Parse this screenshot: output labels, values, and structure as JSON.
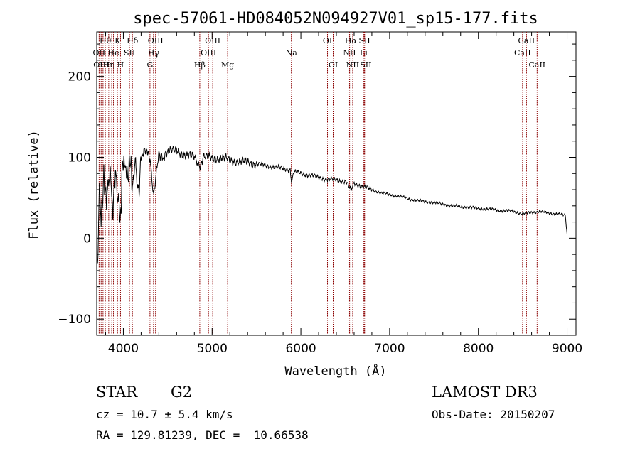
{
  "chart_data": {
    "type": "line",
    "title": "spec-57061-HD084052N094927V01_sp15-177.fits",
    "xlabel": "Wavelength (Å)",
    "ylabel": "Flux (relative)",
    "xlim": [
      3700,
      9100
    ],
    "ylim": [
      -120,
      255
    ],
    "xticks": [
      4000,
      5000,
      6000,
      7000,
      8000,
      9000
    ],
    "xtick_labels": [
      "4000",
      "5000",
      "6000",
      "7000",
      "8000",
      "9000"
    ],
    "yticks": [
      -100,
      0,
      100,
      200
    ],
    "ytick_labels": [
      "−100",
      "0",
      "100",
      "200"
    ],
    "series": [
      {
        "name": "spectrum",
        "color": "#000000",
        "x": [
          3710,
          3730,
          3750,
          3780,
          3810,
          3850,
          3880,
          3910,
          3930,
          3950,
          3968,
          3990,
          4020,
          4050,
          4080,
          4102,
          4130,
          4170,
          4200,
          4250,
          4300,
          4340,
          4400,
          4450,
          4500,
          4600,
          4700,
          4800,
          4861,
          4900,
          5000,
          5100,
          5200,
          5300,
          5400,
          5500,
          5600,
          5700,
          5800,
          5880,
          5893,
          5920,
          6000,
          6100,
          6200,
          6300,
          6400,
          6500,
          6563,
          6600,
          6700,
          6800,
          6900,
          7000,
          7100,
          7200,
          7300,
          7400,
          7500,
          7600,
          7700,
          7800,
          7900,
          8000,
          8100,
          8200,
          8300,
          8400,
          8500,
          8600,
          8700,
          8800,
          8900,
          8980,
          9000
        ],
        "y": [
          -30,
          60,
          20,
          75,
          45,
          90,
          30,
          85,
          55,
          40,
          20,
          95,
          90,
          75,
          100,
          60,
          95,
          50,
          100,
          110,
          100,
          50,
          105,
          98,
          108,
          108,
          103,
          100,
          85,
          102,
          98,
          100,
          96,
          95,
          94,
          92,
          90,
          88,
          86,
          85,
          70,
          82,
          80,
          78,
          75,
          73,
          72,
          70,
          62,
          68,
          64,
          60,
          56,
          54,
          52,
          49,
          47,
          45,
          44,
          42,
          40,
          39,
          38,
          37,
          36,
          35,
          34,
          33,
          30,
          32,
          33,
          31,
          30,
          28,
          5
        ]
      }
    ],
    "line_color": "#8B0000",
    "lines": [
      {
        "x": 3727,
        "label": "OII",
        "row": 1
      },
      {
        "x": 3750,
        "label": "OIII",
        "row": 2
      },
      {
        "x": 3771,
        "label": "",
        "row": 0
      },
      {
        "x": 3797,
        "label": "Hθ",
        "row": 0
      },
      {
        "x": 3835,
        "label": "Hη",
        "row": 2
      },
      {
        "x": 3869,
        "label": "",
        "row": 0
      },
      {
        "x": 3889,
        "label": "He",
        "row": 1
      },
      {
        "x": 3934,
        "label": "K",
        "row": 0
      },
      {
        "x": 3968,
        "label": "H",
        "row": 2
      },
      {
        "x": 4069,
        "label": "SII",
        "row": 1
      },
      {
        "x": 4102,
        "label": "Hδ",
        "row": 0
      },
      {
        "x": 4300,
        "label": "G",
        "row": 2
      },
      {
        "x": 4340,
        "label": "Hγ",
        "row": 1
      },
      {
        "x": 4363,
        "label": "OIII",
        "row": 0
      },
      {
        "x": 4861,
        "label": "Hβ",
        "row": 2
      },
      {
        "x": 4959,
        "label": "OIII",
        "row": 1
      },
      {
        "x": 5007,
        "label": "OIII",
        "row": 0
      },
      {
        "x": 5175,
        "label": "Mg",
        "row": 2
      },
      {
        "x": 5893,
        "label": "Na",
        "row": 1
      },
      {
        "x": 6300,
        "label": "OI",
        "row": 0
      },
      {
        "x": 6364,
        "label": "OI",
        "row": 2
      },
      {
        "x": 6548,
        "label": "NII",
        "row": 1
      },
      {
        "x": 6563,
        "label": "Hα",
        "row": 0
      },
      {
        "x": 6584,
        "label": "NII",
        "row": 2
      },
      {
        "x": 6707,
        "label": "Li",
        "row": 1
      },
      {
        "x": 6717,
        "label": "SII",
        "row": 0
      },
      {
        "x": 6731,
        "label": "SII",
        "row": 2
      },
      {
        "x": 8498,
        "label": "CaII",
        "row": 1
      },
      {
        "x": 8542,
        "label": "CaII",
        "row": 0
      },
      {
        "x": 8662,
        "label": "CaII",
        "row": 2
      }
    ]
  },
  "info": {
    "class": "STAR",
    "subclass": "G2",
    "survey": "LAMOST DR3",
    "cz": "cz = 10.7 ± 5.4 km/s",
    "obs_date": "Obs-Date: 20150207",
    "coords": "RA = 129.81239, DEC =  10.66538"
  }
}
